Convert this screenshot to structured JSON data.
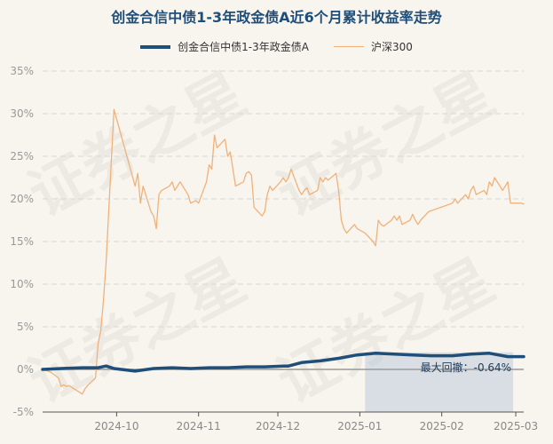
{
  "watermark": "证券之星",
  "chart_data": {
    "type": "line",
    "title": "创金合信中债1-3年政金债A近6个月累计收益率走势",
    "ylim": [
      -5,
      35
    ],
    "y_ticks": [
      "-5%",
      "0%",
      "5%",
      "10%",
      "15%",
      "20%",
      "25%",
      "30%",
      "35%"
    ],
    "y_tick_values": [
      -5,
      0,
      5,
      10,
      15,
      20,
      25,
      30,
      35
    ],
    "x_ticks": [
      "2024-10",
      "2024-11",
      "2024-12",
      "2025-01",
      "2025-02",
      "2025-03"
    ],
    "x_range": [
      "2024-09-03",
      "2025-03-04"
    ],
    "x_tick_dates": [
      "2024-10-01",
      "2024-11-01",
      "2024-12-01",
      "2025-01-01",
      "2025-02-01",
      "2025-03-01"
    ],
    "grid": true,
    "legend_position": "top-center",
    "series": [
      {
        "name": "创金合信中债1-3年政金债A",
        "color": "#1f4e79",
        "points": [
          [
            "2024-09-03",
            0.0
          ],
          [
            "2024-09-10",
            0.1
          ],
          [
            "2024-09-18",
            0.2
          ],
          [
            "2024-09-24",
            0.2
          ],
          [
            "2024-09-27",
            0.4
          ],
          [
            "2024-09-30",
            0.1
          ],
          [
            "2024-10-08",
            -0.2
          ],
          [
            "2024-10-15",
            0.1
          ],
          [
            "2024-10-22",
            0.2
          ],
          [
            "2024-10-29",
            0.1
          ],
          [
            "2024-11-05",
            0.2
          ],
          [
            "2024-11-12",
            0.2
          ],
          [
            "2024-11-19",
            0.3
          ],
          [
            "2024-11-26",
            0.3
          ],
          [
            "2024-12-03",
            0.4
          ],
          [
            "2024-12-05",
            0.4
          ],
          [
            "2024-12-10",
            0.8
          ],
          [
            "2024-12-17",
            1.0
          ],
          [
            "2024-12-24",
            1.3
          ],
          [
            "2024-12-31",
            1.7
          ],
          [
            "2025-01-07",
            1.9
          ],
          [
            "2025-01-14",
            1.8
          ],
          [
            "2025-01-21",
            1.7
          ],
          [
            "2025-01-28",
            1.6
          ],
          [
            "2025-02-05",
            1.6
          ],
          [
            "2025-02-12",
            1.8
          ],
          [
            "2025-02-19",
            1.9
          ],
          [
            "2025-02-26",
            1.5
          ],
          [
            "2025-03-04",
            1.5
          ]
        ]
      },
      {
        "name": "沪深300",
        "color": "#f0b27a",
        "points": [
          [
            "2024-09-03",
            0.0
          ],
          [
            "2024-09-06",
            -0.3
          ],
          [
            "2024-09-09",
            -1.0
          ],
          [
            "2024-09-10",
            -2.0
          ],
          [
            "2024-09-11",
            -1.8
          ],
          [
            "2024-09-12",
            -2.0
          ],
          [
            "2024-09-13",
            -1.9
          ],
          [
            "2024-09-18",
            -2.9
          ],
          [
            "2024-09-19",
            -2.3
          ],
          [
            "2024-09-20",
            -1.9
          ],
          [
            "2024-09-23",
            -1.0
          ],
          [
            "2024-09-24",
            3.0
          ],
          [
            "2024-09-25",
            4.5
          ],
          [
            "2024-09-26",
            8.0
          ],
          [
            "2024-09-27",
            12.5
          ],
          [
            "2024-09-30",
            30.5
          ],
          [
            "2024-10-08",
            21.5
          ],
          [
            "2024-10-09",
            23.0
          ],
          [
            "2024-10-10",
            19.5
          ],
          [
            "2024-10-11",
            21.5
          ],
          [
            "2024-10-14",
            18.5
          ],
          [
            "2024-10-15",
            18.0
          ],
          [
            "2024-10-16",
            16.5
          ],
          [
            "2024-10-17",
            20.5
          ],
          [
            "2024-10-18",
            21.0
          ],
          [
            "2024-10-21",
            21.5
          ],
          [
            "2024-10-22",
            22.0
          ],
          [
            "2024-10-23",
            21.0
          ],
          [
            "2024-10-24",
            21.5
          ],
          [
            "2024-10-25",
            22.0
          ],
          [
            "2024-10-28",
            20.5
          ],
          [
            "2024-10-29",
            19.5
          ],
          [
            "2024-10-31",
            19.8
          ],
          [
            "2024-11-01",
            19.5
          ],
          [
            "2024-11-04",
            22.0
          ],
          [
            "2024-11-05",
            24.0
          ],
          [
            "2024-11-06",
            23.5
          ],
          [
            "2024-11-07",
            27.5
          ],
          [
            "2024-11-08",
            26.0
          ],
          [
            "2024-11-11",
            27.0
          ],
          [
            "2024-11-12",
            25.0
          ],
          [
            "2024-11-13",
            25.5
          ],
          [
            "2024-11-14",
            23.5
          ],
          [
            "2024-11-15",
            21.5
          ],
          [
            "2024-11-18",
            22.0
          ],
          [
            "2024-11-19",
            23.0
          ],
          [
            "2024-11-20",
            23.2
          ],
          [
            "2024-11-21",
            22.8
          ],
          [
            "2024-11-22",
            19.0
          ],
          [
            "2024-11-25",
            18.0
          ],
          [
            "2024-11-26",
            18.5
          ],
          [
            "2024-11-27",
            20.5
          ],
          [
            "2024-11-28",
            21.5
          ],
          [
            "2024-11-29",
            21.0
          ],
          [
            "2024-12-02",
            22.0
          ],
          [
            "2024-12-03",
            22.5
          ],
          [
            "2024-12-04",
            22.0
          ],
          [
            "2024-12-05",
            22.5
          ],
          [
            "2024-12-06",
            23.5
          ],
          [
            "2024-12-09",
            21.0
          ],
          [
            "2024-12-10",
            20.5
          ],
          [
            "2024-12-11",
            21.0
          ],
          [
            "2024-12-12",
            21.3
          ],
          [
            "2024-12-13",
            20.5
          ],
          [
            "2024-12-16",
            21.0
          ],
          [
            "2024-12-17",
            22.5
          ],
          [
            "2024-12-18",
            22.0
          ],
          [
            "2024-12-19",
            22.5
          ],
          [
            "2024-12-20",
            22.2
          ],
          [
            "2024-12-23",
            23.0
          ],
          [
            "2024-12-24",
            21.0
          ],
          [
            "2024-12-25",
            17.5
          ],
          [
            "2024-12-26",
            16.5
          ],
          [
            "2024-12-27",
            16.0
          ],
          [
            "2024-12-30",
            17.0
          ],
          [
            "2024-12-31",
            16.5
          ],
          [
            "2025-01-03",
            16.0
          ],
          [
            "2025-01-06",
            15.0
          ],
          [
            "2025-01-07",
            14.5
          ],
          [
            "2025-01-08",
            17.5
          ],
          [
            "2025-01-09",
            17.0
          ],
          [
            "2025-01-10",
            16.8
          ],
          [
            "2025-01-13",
            17.5
          ],
          [
            "2025-01-14",
            18.0
          ],
          [
            "2025-01-15",
            17.5
          ],
          [
            "2025-01-16",
            18.0
          ],
          [
            "2025-01-17",
            17.0
          ],
          [
            "2025-01-20",
            17.5
          ],
          [
            "2025-01-21",
            18.2
          ],
          [
            "2025-01-22",
            17.5
          ],
          [
            "2025-01-23",
            17.0
          ],
          [
            "2025-01-24",
            17.5
          ],
          [
            "2025-01-27",
            18.5
          ],
          [
            "2025-02-05",
            19.5
          ],
          [
            "2025-02-06",
            20.0
          ],
          [
            "2025-02-07",
            19.5
          ],
          [
            "2025-02-10",
            20.5
          ],
          [
            "2025-02-11",
            20.0
          ],
          [
            "2025-02-12",
            21.0
          ],
          [
            "2025-02-13",
            21.5
          ],
          [
            "2025-02-14",
            20.5
          ],
          [
            "2025-02-17",
            21.0
          ],
          [
            "2025-02-18",
            20.5
          ],
          [
            "2025-02-19",
            22.0
          ],
          [
            "2025-02-20",
            21.5
          ],
          [
            "2025-02-21",
            22.5
          ],
          [
            "2025-02-24",
            21.0
          ],
          [
            "2025-02-25",
            21.5
          ],
          [
            "2025-02-26",
            22.0
          ],
          [
            "2025-02-27",
            19.5
          ],
          [
            "2025-02-28",
            19.5
          ],
          [
            "2025-03-03",
            19.5
          ],
          [
            "2025-03-04",
            19.4
          ]
        ]
      }
    ],
    "drawdown": {
      "label": "最大回撤：-0.64%",
      "start": "2025-01-03",
      "end": "2025-02-28",
      "top": 2.0,
      "bottom": -5,
      "color": "#b8c7d8"
    }
  }
}
